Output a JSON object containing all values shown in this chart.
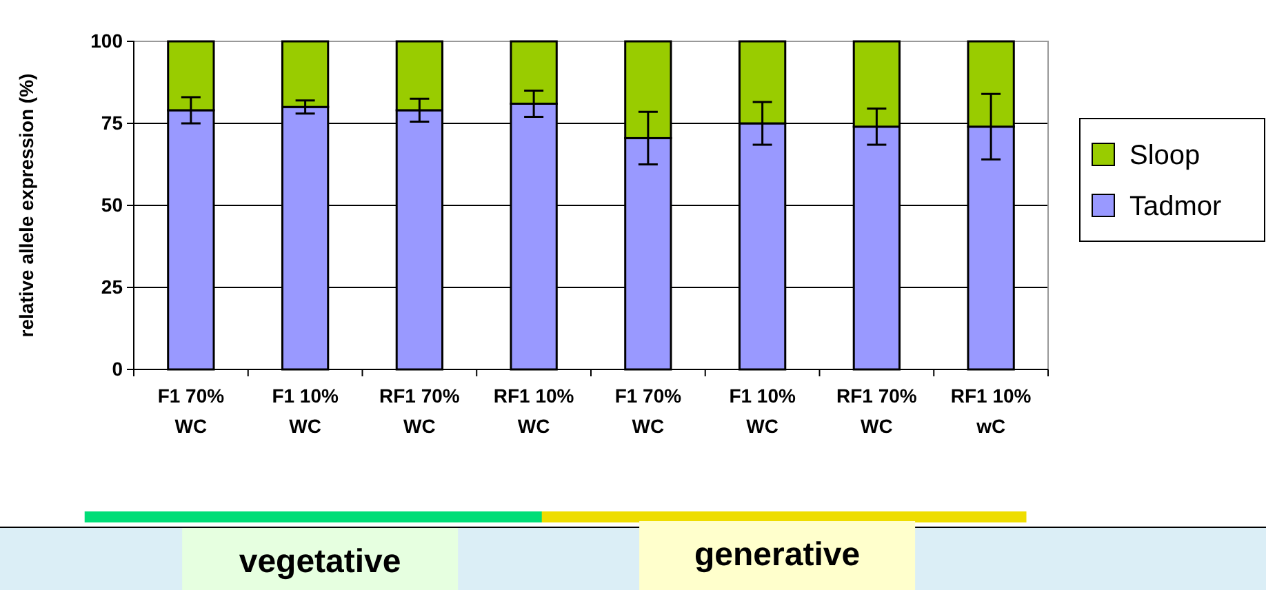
{
  "chart_data": {
    "type": "bar",
    "stacked": true,
    "ylabel": "relative allele expression (%)",
    "categories": [
      "F1 70% WC",
      "F1 10% WC",
      "RF1 70% WC",
      "RF1 10% WC",
      "F1 70% WC",
      "F1 10% WC",
      "RF1 70% WC",
      "RF1 10% wC"
    ],
    "series": [
      {
        "name": "Tadmor",
        "color": "#9999ff",
        "values": [
          79,
          80,
          79,
          81,
          70.5,
          75,
          74,
          74
        ],
        "errors": [
          4,
          2,
          3.5,
          4,
          8,
          6.5,
          5.5,
          10
        ]
      },
      {
        "name": "Sloop",
        "color": "#99cc00",
        "values": [
          21,
          20,
          21,
          19,
          29.5,
          25,
          26,
          26
        ]
      }
    ],
    "ylim": [
      0,
      100
    ],
    "yticks": [
      0,
      25,
      50,
      75,
      100
    ],
    "grid": "y",
    "legend": "right",
    "annotations": [
      "vegetative",
      "generative"
    ]
  }
}
